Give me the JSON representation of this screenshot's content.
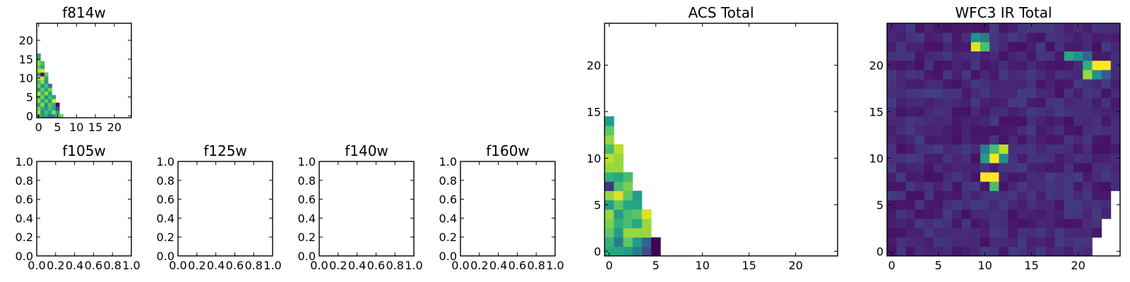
{
  "chart_data": [
    {
      "type": "heatmap",
      "title": "f814w",
      "xlim": [
        -0.5,
        24.5
      ],
      "ylim": [
        -0.5,
        24.5
      ],
      "xticks": [
        0,
        5,
        10,
        15,
        20
      ],
      "yticks": [
        0,
        5,
        10,
        15,
        20
      ],
      "xtick_labels": [
        "0",
        "5",
        "10",
        "15",
        "20"
      ],
      "ytick_labels": [
        "0",
        "5",
        "10",
        "15",
        "20"
      ],
      "colormap": "viridis",
      "cells": [
        [
          0,
          0,
          0.75
        ],
        [
          1,
          0,
          0.55
        ],
        [
          2,
          0,
          0.6
        ],
        [
          3,
          0,
          0.45
        ],
        [
          4,
          0,
          0.5
        ],
        [
          5,
          0,
          0.7
        ],
        [
          6,
          0,
          0.8
        ],
        [
          0,
          1,
          0.9
        ],
        [
          1,
          1,
          0.5
        ],
        [
          2,
          1,
          0.7
        ],
        [
          3,
          1,
          0.6
        ],
        [
          4,
          1,
          0.85
        ],
        [
          5,
          1,
          0.55
        ],
        [
          0,
          2,
          0.8
        ],
        [
          1,
          2,
          0.6
        ],
        [
          2,
          2,
          0.55
        ],
        [
          3,
          2,
          0.7
        ],
        [
          4,
          2,
          0.6
        ],
        [
          5,
          2,
          0.3
        ],
        [
          0,
          3,
          0.6
        ],
        [
          1,
          3,
          0.85
        ],
        [
          2,
          3,
          0.5
        ],
        [
          3,
          3,
          0.75
        ],
        [
          4,
          3,
          0.65
        ],
        [
          5,
          3,
          0.05
        ],
        [
          0,
          4,
          0.85
        ],
        [
          1,
          4,
          0.6
        ],
        [
          2,
          4,
          0.75
        ],
        [
          3,
          4,
          0.55
        ],
        [
          4,
          4,
          0.95
        ],
        [
          0,
          5,
          0.7
        ],
        [
          1,
          5,
          0.8
        ],
        [
          2,
          5,
          0.5
        ],
        [
          3,
          5,
          0.7
        ],
        [
          4,
          5,
          0.6
        ],
        [
          0,
          6,
          0.9
        ],
        [
          1,
          6,
          0.65
        ],
        [
          2,
          6,
          0.85
        ],
        [
          3,
          6,
          0.6
        ],
        [
          0,
          7,
          0.55
        ],
        [
          1,
          7,
          0.75
        ],
        [
          2,
          7,
          0.6
        ],
        [
          3,
          7,
          0.8
        ],
        [
          0,
          8,
          0.8
        ],
        [
          1,
          8,
          0.5
        ],
        [
          2,
          8,
          0.7
        ],
        [
          3,
          8,
          0.45
        ],
        [
          0,
          9,
          0.7
        ],
        [
          1,
          9,
          0.85
        ],
        [
          2,
          9,
          0.55
        ],
        [
          0,
          10,
          0.85
        ],
        [
          1,
          10,
          0.95
        ],
        [
          2,
          10,
          0.6
        ],
        [
          0,
          11,
          0.6
        ],
        [
          1,
          11,
          0.05
        ],
        [
          2,
          11,
          0.75
        ],
        [
          0,
          12,
          0.9
        ],
        [
          1,
          12,
          0.95
        ],
        [
          0,
          13,
          0.75
        ],
        [
          1,
          13,
          0.6
        ],
        [
          0,
          14,
          0.85
        ],
        [
          1,
          14,
          0.7
        ],
        [
          0,
          15,
          0.7
        ],
        [
          0,
          16,
          0.6
        ]
      ]
    },
    {
      "type": "empty",
      "title": "f105w",
      "xlim": [
        0.0,
        1.0
      ],
      "ylim": [
        0.0,
        1.0
      ],
      "xticks": [
        0,
        0.2,
        0.4,
        0.6,
        0.8,
        1.0
      ],
      "yticks": [
        0,
        0.2,
        0.4,
        0.6,
        0.8,
        1.0
      ],
      "xtick_labels": [
        "0.0",
        "0.2",
        "0.4",
        "0.6",
        "0.8",
        "1.0"
      ],
      "ytick_labels": [
        "0.0",
        "0.2",
        "0.4",
        "0.6",
        "0.8",
        "1.0"
      ]
    },
    {
      "type": "empty",
      "title": "f125w",
      "xlim": [
        0.0,
        1.0
      ],
      "ylim": [
        0.0,
        1.0
      ],
      "xticks": [
        0,
        0.2,
        0.4,
        0.6,
        0.8,
        1.0
      ],
      "yticks": [
        0,
        0.2,
        0.4,
        0.6,
        0.8,
        1.0
      ],
      "xtick_labels": [
        "0.0",
        "0.2",
        "0.4",
        "0.6",
        "0.8",
        "1.0"
      ],
      "ytick_labels": [
        "0.0",
        "0.2",
        "0.4",
        "0.6",
        "0.8",
        "1.0"
      ]
    },
    {
      "type": "empty",
      "title": "f140w",
      "xlim": [
        0.0,
        1.0
      ],
      "ylim": [
        0.0,
        1.0
      ],
      "xticks": [
        0,
        0.2,
        0.4,
        0.6,
        0.8,
        1.0
      ],
      "yticks": [
        0,
        0.2,
        0.4,
        0.6,
        0.8,
        1.0
      ],
      "xtick_labels": [
        "0.0",
        "0.2",
        "0.4",
        "0.6",
        "0.8",
        "1.0"
      ],
      "ytick_labels": [
        "0.0",
        "0.2",
        "0.4",
        "0.6",
        "0.8",
        "1.0"
      ]
    },
    {
      "type": "empty",
      "title": "f160w",
      "xlim": [
        0.0,
        1.0
      ],
      "ylim": [
        0.0,
        1.0
      ],
      "xticks": [
        0,
        0.2,
        0.4,
        0.6,
        0.8,
        1.0
      ],
      "yticks": [
        0,
        0.2,
        0.4,
        0.6,
        0.8,
        1.0
      ],
      "xtick_labels": [
        "0.0",
        "0.2",
        "0.4",
        "0.6",
        "0.8",
        "1.0"
      ],
      "ytick_labels": [
        "0.0",
        "0.2",
        "0.4",
        "0.6",
        "0.8",
        "1.0"
      ]
    },
    {
      "type": "heatmap",
      "title": "ACS Total",
      "xlim": [
        -0.5,
        24.5
      ],
      "ylim": [
        -0.5,
        24.5
      ],
      "xticks": [
        0,
        5,
        10,
        15,
        20
      ],
      "yticks": [
        0,
        5,
        10,
        15,
        20
      ],
      "xtick_labels": [
        "0",
        "5",
        "10",
        "15",
        "20"
      ],
      "ytick_labels": [
        "0",
        "5",
        "10",
        "15",
        "20"
      ],
      "colormap": "viridis",
      "cells": [
        [
          0,
          0,
          0.6
        ],
        [
          1,
          0,
          0.6
        ],
        [
          2,
          0,
          0.55
        ],
        [
          3,
          0,
          0.45
        ],
        [
          4,
          0,
          0.3
        ],
        [
          5,
          0,
          0.0
        ],
        [
          0,
          1,
          0.65
        ],
        [
          1,
          1,
          0.45
        ],
        [
          2,
          1,
          0.75
        ],
        [
          3,
          1,
          0.55
        ],
        [
          4,
          1,
          0.4
        ],
        [
          5,
          1,
          0.0
        ],
        [
          0,
          2,
          0.75
        ],
        [
          1,
          2,
          0.55
        ],
        [
          2,
          2,
          0.85
        ],
        [
          3,
          2,
          0.85
        ],
        [
          4,
          2,
          0.85
        ],
        [
          0,
          3,
          0.8
        ],
        [
          1,
          3,
          0.65
        ],
        [
          2,
          3,
          0.7
        ],
        [
          3,
          3,
          0.6
        ],
        [
          4,
          3,
          0.85
        ],
        [
          0,
          4,
          0.85
        ],
        [
          1,
          4,
          0.55
        ],
        [
          2,
          4,
          0.7
        ],
        [
          3,
          4,
          0.75
        ],
        [
          4,
          4,
          0.95
        ],
        [
          0,
          5,
          0.55
        ],
        [
          1,
          5,
          0.75
        ],
        [
          2,
          5,
          0.6
        ],
        [
          3,
          5,
          0.6
        ],
        [
          0,
          6,
          0.85
        ],
        [
          1,
          6,
          0.95
        ],
        [
          2,
          6,
          0.75
        ],
        [
          3,
          6,
          0.55
        ],
        [
          0,
          7,
          0.2
        ],
        [
          1,
          7,
          0.7
        ],
        [
          2,
          7,
          0.8
        ],
        [
          0,
          8,
          0.65
        ],
        [
          1,
          8,
          0.6
        ],
        [
          2,
          8,
          0.7
        ],
        [
          0,
          9,
          0.85
        ],
        [
          1,
          9,
          0.85
        ],
        [
          0,
          10,
          0.9
        ],
        [
          1,
          10,
          0.85
        ],
        [
          0,
          11,
          0.7
        ],
        [
          1,
          11,
          0.9
        ],
        [
          0,
          12,
          0.85
        ],
        [
          0,
          13,
          0.75
        ],
        [
          0,
          14,
          0.55
        ]
      ]
    },
    {
      "type": "heatmap",
      "title": "WFC3 IR Total",
      "xlim": [
        -0.5,
        24.5
      ],
      "ylim": [
        -0.5,
        24.5
      ],
      "xticks": [
        0,
        5,
        10,
        15,
        20
      ],
      "yticks": [
        0,
        5,
        10,
        15,
        20
      ],
      "xtick_labels": [
        "0",
        "5",
        "10",
        "15",
        "20"
      ],
      "ytick_labels": [
        "0",
        "5",
        "10",
        "15",
        "20"
      ],
      "colormap": "viridis",
      "background_low": [
        0.06,
        0.22
      ],
      "masked_right_edge": [
        [
          0,
          21
        ],
        [
          1,
          21
        ],
        [
          2,
          22
        ],
        [
          3,
          22
        ],
        [
          4,
          23
        ],
        [
          5,
          23
        ],
        [
          6,
          23
        ],
        [
          7,
          24
        ],
        [
          8,
          24
        ],
        [
          9,
          24
        ]
      ],
      "hot_cells": [
        [
          9,
          23,
          0.5
        ],
        [
          10,
          23,
          0.45
        ],
        [
          9,
          22,
          0.95
        ],
        [
          10,
          22,
          0.7
        ],
        [
          19,
          21,
          0.6
        ],
        [
          20,
          21,
          0.5
        ],
        [
          21,
          21,
          0.4
        ],
        [
          21,
          20,
          0.65
        ],
        [
          22,
          20,
          1.0
        ],
        [
          23,
          20,
          1.0
        ],
        [
          21,
          19,
          0.85
        ],
        [
          22,
          19,
          0.5
        ],
        [
          23,
          19,
          0.35
        ],
        [
          10,
          11,
          0.45
        ],
        [
          11,
          11,
          0.7
        ],
        [
          12,
          11,
          0.9
        ],
        [
          10,
          10,
          0.55
        ],
        [
          11,
          10,
          1.0
        ],
        [
          12,
          10,
          0.5
        ],
        [
          10,
          8,
          1.0
        ],
        [
          11,
          8,
          1.0
        ],
        [
          11,
          7,
          0.7
        ]
      ]
    }
  ]
}
